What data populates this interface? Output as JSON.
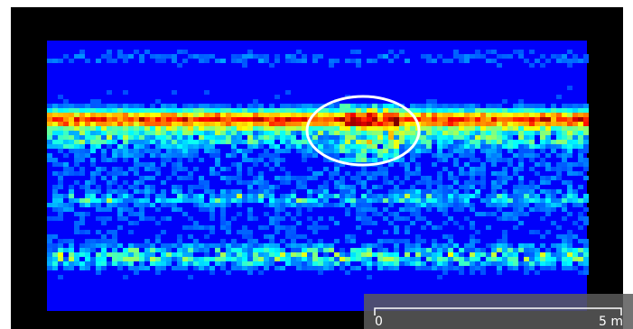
{
  "scale_bar": {
    "start_label": "0",
    "end_label": "5 m"
  }
}
